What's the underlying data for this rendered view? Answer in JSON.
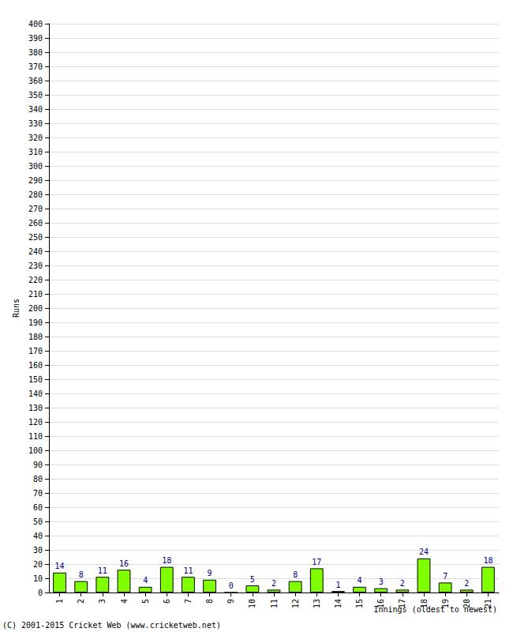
{
  "chart_data": {
    "type": "bar",
    "categories": [
      "1",
      "2",
      "3",
      "4",
      "5",
      "6",
      "7",
      "8",
      "9",
      "10",
      "11",
      "12",
      "13",
      "14",
      "15",
      "16",
      "17",
      "18",
      "19",
      "20",
      "21"
    ],
    "values": [
      14,
      8,
      11,
      16,
      4,
      18,
      11,
      9,
      0,
      5,
      2,
      8,
      17,
      1,
      4,
      3,
      2,
      24,
      7,
      2,
      18
    ],
    "color": "#80ff00",
    "x_label": "Innings (oldest to newest)",
    "y_label": "Runs",
    "annotations": [
      "(C) 2001-2015 Cricket Web (www.cricketweb.net)"
    ],
    "ylim": [
      0,
      400
    ],
    "yticks": [
      0,
      10,
      20,
      30,
      40,
      50,
      60,
      70,
      80,
      90,
      100,
      110,
      120,
      130,
      140,
      150,
      160,
      170,
      180,
      190,
      200,
      210,
      220,
      230,
      240,
      250,
      260,
      270,
      280,
      290,
      300,
      310,
      320,
      330,
      340,
      350,
      360,
      370,
      380,
      390,
      400
    ],
    "grid": true,
    "data_labels": true
  }
}
